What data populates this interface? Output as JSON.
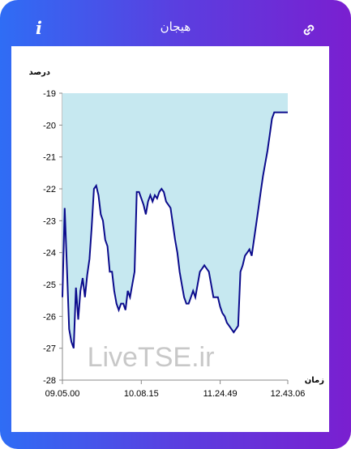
{
  "header": {
    "title": "هیجان",
    "info_icon": "info-icon",
    "link_icon": "link-icon"
  },
  "colors": {
    "gradient_start": "#2f6df5",
    "gradient_end": "#7a1fd0",
    "line": "#0b0b8c",
    "fill": "#c6e8f0"
  },
  "watermark": "LiveTSE.ir",
  "chart_data": {
    "type": "area",
    "ylabel": "درصد",
    "xlabel": "زمان",
    "ylim": [
      -28,
      -19
    ],
    "yticks": [
      -19,
      -20,
      -21,
      -22,
      -23,
      -24,
      -25,
      -26,
      -27,
      -28
    ],
    "xlim": [
      0,
      100
    ],
    "xticks": [
      {
        "x": 0,
        "label": "09.05.00"
      },
      {
        "x": 35,
        "label": "10.08.15"
      },
      {
        "x": 70,
        "label": "11.24.49"
      },
      {
        "x": 100,
        "label": "12.43.06"
      }
    ],
    "baseline": -19,
    "x": [
      0,
      1,
      2,
      3,
      4,
      5,
      6,
      7,
      8,
      9,
      10,
      11,
      12,
      13,
      14,
      15,
      16,
      17,
      18,
      19,
      20,
      21,
      22,
      23,
      24,
      25,
      26,
      27,
      28,
      29,
      30,
      31,
      32,
      33,
      34,
      35,
      36,
      37,
      38,
      39,
      40,
      41,
      42,
      43,
      44,
      45,
      46,
      47,
      48,
      49,
      50,
      51,
      52,
      53,
      54,
      55,
      56,
      57,
      58,
      59,
      60,
      61,
      62,
      63,
      64,
      65,
      66,
      67,
      68,
      69,
      70,
      71,
      72,
      73,
      74,
      75,
      76,
      77,
      78,
      79,
      80,
      81,
      82,
      83,
      84,
      85,
      86,
      87,
      88,
      89,
      90,
      91,
      92,
      93,
      94,
      95,
      96,
      97,
      98,
      99,
      100
    ],
    "values": [
      -25.4,
      -22.6,
      -24.5,
      -26.4,
      -26.8,
      -27.0,
      -25.1,
      -26.1,
      -25.2,
      -24.8,
      -25.4,
      -24.7,
      -24.2,
      -23.2,
      -22.0,
      -21.9,
      -22.2,
      -22.8,
      -23.0,
      -23.6,
      -23.8,
      -24.6,
      -24.6,
      -25.2,
      -25.6,
      -25.8,
      -25.6,
      -25.6,
      -25.8,
      -25.2,
      -25.4,
      -25.0,
      -24.6,
      -22.1,
      -22.1,
      -22.3,
      -22.5,
      -22.8,
      -22.4,
      -22.2,
      -22.4,
      -22.2,
      -22.3,
      -22.1,
      -22.0,
      -22.1,
      -22.4,
      -22.5,
      -22.6,
      -23.1,
      -23.6,
      -24.0,
      -24.6,
      -25.0,
      -25.4,
      -25.6,
      -25.6,
      -25.4,
      -25.2,
      -25.4,
      -25.0,
      -24.6,
      -24.5,
      -24.4,
      -24.5,
      -24.6,
      -25.0,
      -25.4,
      -25.4,
      -25.4,
      -25.7,
      -25.9,
      -26.0,
      -26.2,
      -26.3,
      -26.4,
      -26.5,
      -26.4,
      -26.3,
      -24.6,
      -24.4,
      -24.1,
      -24.0,
      -23.9,
      -24.1,
      -23.6,
      -23.1,
      -22.6,
      -22.1,
      -21.6,
      -21.2,
      -20.8,
      -20.3,
      -19.8,
      -19.6,
      -19.6,
      -19.6,
      -19.6,
      -19.6,
      -19.6,
      -19.6
    ]
  }
}
